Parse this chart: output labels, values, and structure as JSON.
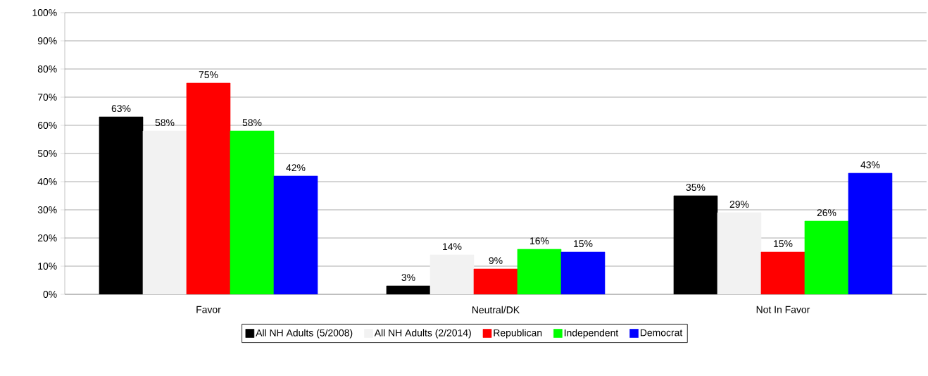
{
  "chart_data": {
    "type": "bar",
    "categories": [
      "Favor",
      "Neutral/DK",
      "Not In Favor"
    ],
    "series": [
      {
        "name": "All NH Adults (5/2008)",
        "color": "#000000",
        "values": [
          63,
          3,
          35
        ],
        "value_labels": [
          "63%",
          "3%",
          "35%"
        ]
      },
      {
        "name": "All NH Adults (2/2014)",
        "color": "#f2f2f2",
        "values": [
          58,
          14,
          29
        ],
        "value_labels": [
          "58%",
          "14%",
          "29%"
        ]
      },
      {
        "name": "Republican",
        "color": "#ff0000",
        "values": [
          75,
          9,
          15
        ],
        "value_labels": [
          "75%",
          "9%",
          "15%"
        ]
      },
      {
        "name": "Independent",
        "color": "#00ff00",
        "values": [
          58,
          16,
          26
        ],
        "value_labels": [
          "58%",
          "16%",
          "26%"
        ]
      },
      {
        "name": "Democrat",
        "color": "#0000ff",
        "values": [
          42,
          15,
          43
        ],
        "value_labels": [
          "42%",
          "15%",
          "43%"
        ]
      }
    ],
    "ylim": [
      0,
      100
    ],
    "yticks": [
      {
        "value": 0,
        "label": "0%"
      },
      {
        "value": 10,
        "label": "10%"
      },
      {
        "value": 20,
        "label": "20%"
      },
      {
        "value": 30,
        "label": "30%"
      },
      {
        "value": 40,
        "label": "40%"
      },
      {
        "value": 50,
        "label": "50%"
      },
      {
        "value": 60,
        "label": "60%"
      },
      {
        "value": 70,
        "label": "70%"
      },
      {
        "value": 80,
        "label": "80%"
      },
      {
        "value": 90,
        "label": "90%"
      },
      {
        "value": 100,
        "label": "100%"
      }
    ],
    "grid": "y",
    "legend": "bottom"
  }
}
